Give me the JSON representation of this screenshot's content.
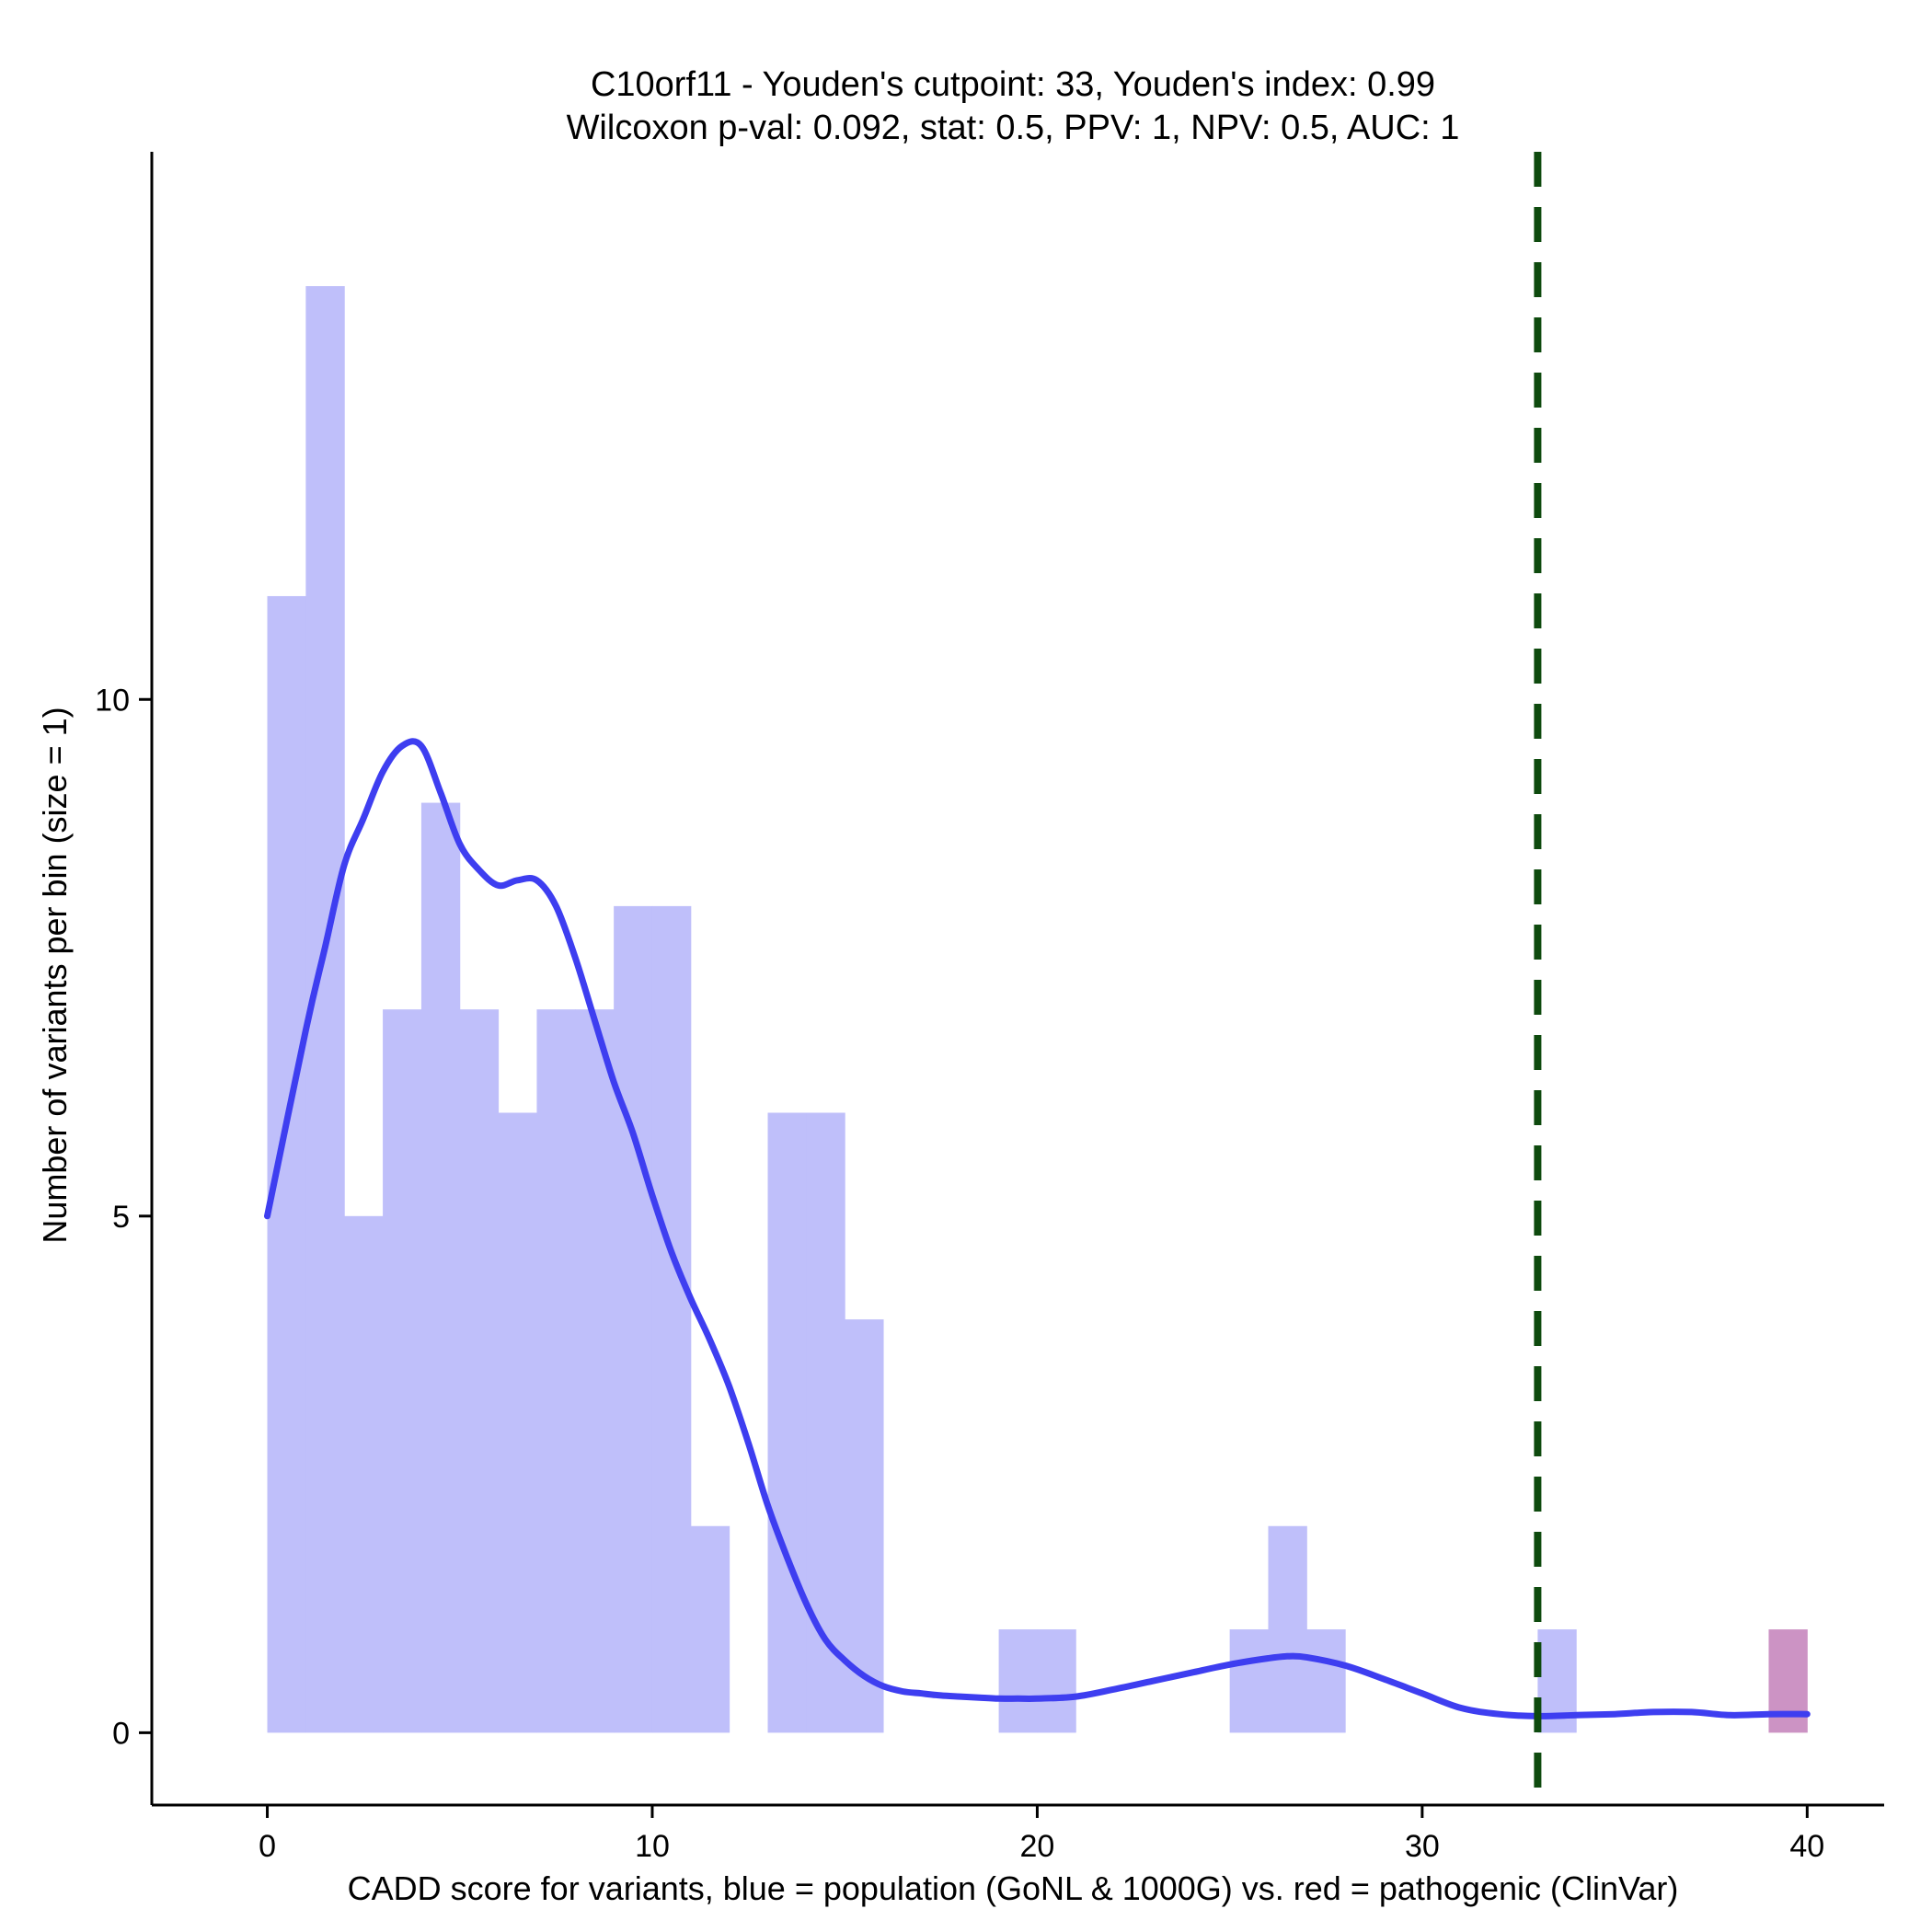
{
  "chart_data": {
    "type": "bar",
    "title_line1": "C10orf11 - Youden's cutpoint: 33, Youden's index: 0.99",
    "title_line2": "Wilcoxon p-val: 0.092, stat: 0.5, PPV: 1, NPV: 0.5, AUC: 1",
    "xlabel": "CADD score for variants, blue = population (GoNL & 1000G) vs. red = pathogenic (ClinVar)",
    "ylabel": "Number of variants per bin (size = 1)",
    "xlim": [
      -3,
      42
    ],
    "ylim": [
      -0.7,
      15.3
    ],
    "x_ticks": [
      0,
      10,
      20,
      30,
      40
    ],
    "y_ticks": [
      0,
      5,
      10
    ],
    "bin_size": 1,
    "grid": false,
    "cutpoint": 33,
    "colors": {
      "population": "#bfbffa",
      "pathogenic": "#cc93c4",
      "density": "#3e3ef0",
      "cutpoint": "#0e4a0e"
    },
    "series": [
      {
        "key": "population",
        "bins": [
          {
            "x0": 0,
            "count": 11
          },
          {
            "x0": 1,
            "count": 14
          },
          {
            "x0": 2,
            "count": 5
          },
          {
            "x0": 3,
            "count": 7
          },
          {
            "x0": 4,
            "count": 9
          },
          {
            "x0": 5,
            "count": 7
          },
          {
            "x0": 6,
            "count": 6
          },
          {
            "x0": 7,
            "count": 7
          },
          {
            "x0": 8,
            "count": 7
          },
          {
            "x0": 9,
            "count": 8
          },
          {
            "x0": 10,
            "count": 8
          },
          {
            "x0": 11,
            "count": 2
          },
          {
            "x0": 13,
            "count": 6
          },
          {
            "x0": 14,
            "count": 6
          },
          {
            "x0": 15,
            "count": 4
          },
          {
            "x0": 19,
            "count": 1
          },
          {
            "x0": 20,
            "count": 1
          },
          {
            "x0": 25,
            "count": 1
          },
          {
            "x0": 26,
            "count": 2
          },
          {
            "x0": 27,
            "count": 1
          },
          {
            "x0": 33,
            "count": 1
          }
        ]
      },
      {
        "key": "pathogenic",
        "bins": [
          {
            "x0": 39,
            "count": 1
          }
        ]
      }
    ],
    "density": {
      "x": [
        0,
        1,
        1.5,
        2,
        2.5,
        3,
        3.5,
        4,
        4.5,
        5,
        5.5,
        6,
        6.5,
        7,
        7.5,
        8,
        8.5,
        9,
        9.5,
        10,
        10.5,
        11,
        11.5,
        12,
        12.5,
        13,
        13.5,
        14,
        14.5,
        15,
        15.5,
        16,
        16.5,
        17,
        17.5,
        18,
        18.5,
        19,
        19.5,
        20,
        21,
        22,
        23,
        24,
        25,
        26,
        26.5,
        27,
        28,
        29,
        30,
        31,
        32,
        33,
        34,
        35,
        36,
        37,
        38,
        39,
        40
      ],
      "y": [
        5,
        6.8,
        7.6,
        8.4,
        8.85,
        9.3,
        9.55,
        9.55,
        9.1,
        8.6,
        8.35,
        8.2,
        8.25,
        8.25,
        8.0,
        7.5,
        6.9,
        6.3,
        5.8,
        5.2,
        4.65,
        4.2,
        3.8,
        3.35,
        2.8,
        2.2,
        1.7,
        1.25,
        0.9,
        0.7,
        0.55,
        0.45,
        0.4,
        0.38,
        0.36,
        0.35,
        0.34,
        0.33,
        0.33,
        0.33,
        0.35,
        0.42,
        0.5,
        0.58,
        0.66,
        0.72,
        0.74,
        0.73,
        0.65,
        0.52,
        0.38,
        0.24,
        0.18,
        0.16,
        0.17,
        0.18,
        0.2,
        0.2,
        0.17,
        0.18,
        0.18
      ]
    }
  }
}
